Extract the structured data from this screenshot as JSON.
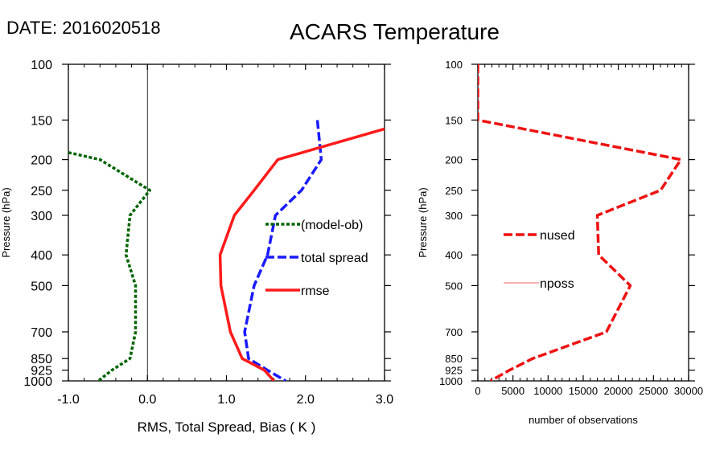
{
  "header": {
    "date_label": "DATE: 2016020518",
    "title": "ACARS Temperature"
  },
  "chart_data": [
    {
      "type": "line",
      "name": "left-panel",
      "xlabel": "RMS, Total Spread, Bias ( K )",
      "ylabel": "Pressure (hPa)",
      "xlim": [
        -1.0,
        3.0
      ],
      "ylim": [
        1000,
        100
      ],
      "yscale": "log",
      "x_ticks": [
        -1.0,
        0.0,
        1.0,
        2.0,
        3.0
      ],
      "x_tick_labels": [
        "-1.0",
        "0.0",
        "1.0",
        "2.0",
        "3.0"
      ],
      "y_ticks": [
        100,
        150,
        200,
        250,
        300,
        400,
        500,
        700,
        850,
        925,
        1000
      ],
      "y_tick_labels": [
        "100",
        "150",
        "200",
        "250",
        "300",
        "400",
        "500",
        "700",
        "850",
        "925",
        "1000"
      ],
      "zero_line": 0.0,
      "series": [
        {
          "name": "(model-ob)",
          "color": "#006400",
          "style": "dotted",
          "points": [
            [
              -1.0,
              190
            ],
            [
              -0.6,
              200
            ],
            [
              0.03,
              250
            ],
            [
              -0.22,
              300
            ],
            [
              -0.27,
              400
            ],
            [
              -0.15,
              500
            ],
            [
              -0.15,
              700
            ],
            [
              -0.22,
              850
            ],
            [
              -0.45,
              925
            ],
            [
              -0.62,
              1000
            ]
          ]
        },
        {
          "name": "total spread",
          "color": "#1a1aff",
          "style": "dashed",
          "points": [
            [
              2.15,
              150
            ],
            [
              2.2,
              200
            ],
            [
              1.95,
              250
            ],
            [
              1.62,
              300
            ],
            [
              1.52,
              400
            ],
            [
              1.35,
              500
            ],
            [
              1.23,
              700
            ],
            [
              1.28,
              850
            ],
            [
              1.52,
              925
            ],
            [
              1.75,
              1000
            ]
          ]
        },
        {
          "name": "rmse",
          "color": "#ff1a1a",
          "style": "solid",
          "points": [
            [
              3.0,
              160
            ],
            [
              1.65,
              200
            ],
            [
              1.35,
              250
            ],
            [
              1.1,
              300
            ],
            [
              0.92,
              400
            ],
            [
              0.93,
              500
            ],
            [
              1.05,
              700
            ],
            [
              1.2,
              850
            ],
            [
              1.48,
              925
            ],
            [
              1.6,
              1000
            ]
          ]
        }
      ]
    },
    {
      "type": "line",
      "name": "right-panel",
      "xlabel": "number of observations",
      "ylabel": "Pressure (hPa)",
      "xlim": [
        0,
        30000
      ],
      "ylim": [
        1000,
        100
      ],
      "yscale": "log",
      "x_ticks": [
        0,
        5000,
        10000,
        15000,
        20000,
        25000,
        30000
      ],
      "x_tick_labels": [
        "0",
        "5000",
        "10000",
        "15000",
        "20000",
        "25000",
        "30000"
      ],
      "y_ticks": [
        100,
        150,
        200,
        250,
        300,
        400,
        500,
        700,
        850,
        925,
        1000
      ],
      "y_tick_labels": [
        "100",
        "150",
        "200",
        "250",
        "300",
        "400",
        "500",
        "700",
        "850",
        "925",
        "1000"
      ],
      "series": [
        {
          "name": "nused",
          "color": "#ee1111",
          "style": "dashed",
          "points": [
            [
              0,
              100
            ],
            [
              0,
              150
            ],
            [
              28900,
              200
            ],
            [
              26000,
              250
            ],
            [
              17000,
              300
            ],
            [
              17200,
              400
            ],
            [
              21700,
              500
            ],
            [
              18300,
              700
            ],
            [
              7800,
              850
            ],
            [
              4500,
              925
            ],
            [
              1800,
              1000
            ]
          ]
        },
        {
          "name": "nposs",
          "color": "#f08080",
          "style": "thin",
          "points": []
        }
      ]
    }
  ]
}
